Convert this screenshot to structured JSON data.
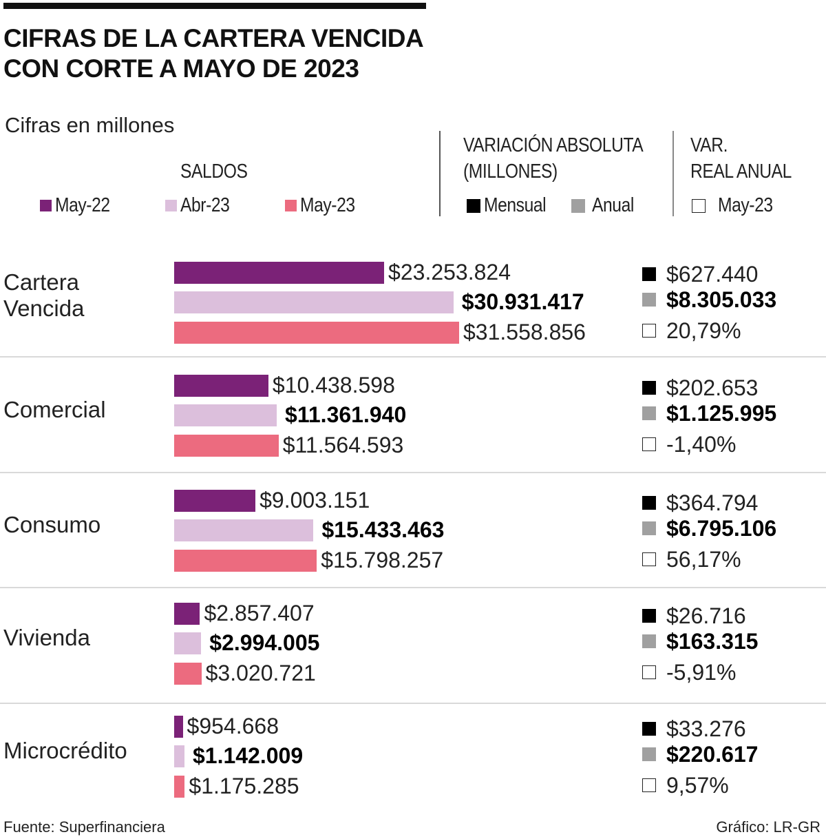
{
  "header": {
    "title_line1": "CIFRAS DE LA CARTERA VENCIDA",
    "title_line2": "CON CORTE A MAYO DE 2023",
    "subtitle": "Cifras en millones"
  },
  "legend": {
    "saldos": {
      "title": "SALDOS",
      "items": [
        {
          "label": "May-22",
          "color": "#7b2277"
        },
        {
          "label": "Abr-23",
          "color": "#dcbfdc"
        },
        {
          "label": "May-23",
          "color": "#ec6b7f"
        }
      ]
    },
    "variacion_absoluta": {
      "title_line1": "VARIACIÓN ABSOLUTA",
      "title_line2": "(MILLONES)",
      "items": [
        {
          "label": "Mensual",
          "color": "#000000"
        },
        {
          "label": "Anual",
          "color": "#a0a0a0"
        }
      ]
    },
    "var_real_anual": {
      "title_line1": "VAR.",
      "title_line2": "REAL ANUAL",
      "items": [
        {
          "label": "May-23",
          "color": "#ffffff"
        }
      ]
    }
  },
  "chart_data": {
    "type": "bar",
    "orientation": "horizontal",
    "title": "CIFRAS DE LA CARTERA VENCIDA CON CORTE A MAYO DE 2023",
    "subtitle": "Cifras en millones",
    "units": "millones de pesos",
    "categories": [
      "Cartera Vencida",
      "Comercial",
      "Consumo",
      "Vivienda",
      "Microcrédito"
    ],
    "series": [
      {
        "name": "May-22",
        "color": "#7b2277",
        "values": [
          23253824,
          10438598,
          9003151,
          2857407,
          954668
        ],
        "labels": [
          "$23.253.824",
          "$10.438.598",
          "$9.003.151",
          "$2.857.407",
          "$954.668"
        ]
      },
      {
        "name": "Abr-23",
        "color": "#dcbfdc",
        "bold_labels": true,
        "values": [
          30931417,
          11361940,
          15433463,
          2994005,
          1142009
        ],
        "labels": [
          "$30.931.417",
          "$11.361.940",
          "$15.433.463",
          "$2.994.005",
          "$1.142.009"
        ]
      },
      {
        "name": "May-23",
        "color": "#ec6b7f",
        "values": [
          31558856,
          11564593,
          15798257,
          3020721,
          1175285
        ],
        "labels": [
          "$31.558.856",
          "$11.564.593",
          "$15.798.257",
          "$3.020.721",
          "$1.175.285"
        ]
      }
    ],
    "variacion_absoluta": {
      "mensual": {
        "values": [
          627440,
          202653,
          364794,
          26716,
          33276
        ],
        "labels": [
          "$627.440",
          "$202.653",
          "$364.794",
          "$26.716",
          "$33.276"
        ]
      },
      "anual": {
        "values": [
          8305033,
          1125995,
          6795106,
          163315,
          220617
        ],
        "labels": [
          "$8.305.033",
          "$1.125.995",
          "$6.795.106",
          "$163.315",
          "$220.617"
        ]
      }
    },
    "var_real_anual_may23": {
      "values": [
        20.79,
        -1.4,
        56.17,
        -5.91,
        9.57
      ],
      "labels": [
        "20,79%",
        "-1,40%",
        "56,17%",
        "-5,91%",
        "9,57%"
      ]
    },
    "xlim": [
      0,
      31558856
    ],
    "grid": false,
    "legend": "top"
  },
  "footer": {
    "source": "Fuente: Superfinanciera",
    "credit": "Gráfico: LR-GR"
  }
}
